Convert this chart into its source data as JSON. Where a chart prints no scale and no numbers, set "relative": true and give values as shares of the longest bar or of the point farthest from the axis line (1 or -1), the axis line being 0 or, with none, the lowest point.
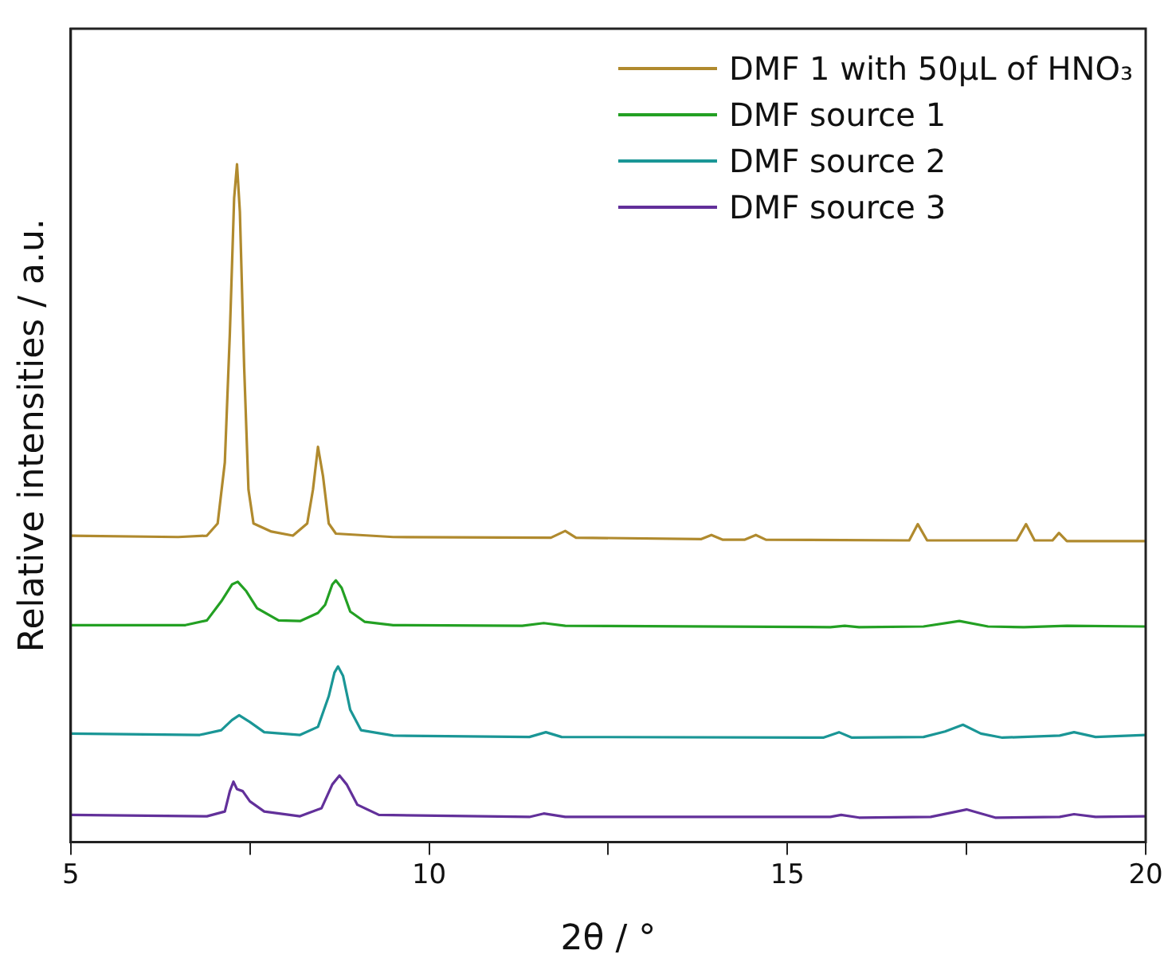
{
  "chart_data": {
    "type": "line",
    "xlabel": "2θ / °",
    "ylabel": "Relative intensities / a.u.",
    "relative": true,
    "legend": "top right",
    "grid": false,
    "marker": "none",
    "line_style": "solid",
    "xlim": [
      5,
      20
    ],
    "xticks": [
      5,
      {
        "value": 7.5,
        "label": null
      },
      10,
      {
        "value": 12.5,
        "label": null
      },
      15,
      {
        "value": 17.5,
        "label": null
      },
      20
    ],
    "series": [
      {
        "name": "DMF 1 with 50μL of HNO₃",
        "color": "#b08a2e",
        "x": [
          5,
          6.5,
          6.9,
          7.05,
          7.15,
          7.22,
          7.28,
          7.32,
          7.36,
          7.42,
          7.48,
          7.55,
          7.8,
          8.1,
          8.3,
          8.38,
          8.45,
          8.52,
          8.6,
          8.7,
          9.5,
          11.7,
          11.9,
          12.05,
          13.8,
          13.94,
          14.1,
          14.4,
          14.56,
          14.7,
          16.7,
          16.82,
          16.95,
          18.2,
          18.33,
          18.45,
          18.7,
          18.79,
          18.9,
          20
        ],
        "values": [
          0.452,
          0.45,
          0.452,
          0.47,
          0.56,
          0.75,
          0.95,
          1.0,
          0.93,
          0.7,
          0.52,
          0.47,
          0.458,
          0.452,
          0.47,
          0.52,
          0.583,
          0.54,
          0.47,
          0.455,
          0.45,
          0.449,
          0.459,
          0.449,
          0.447,
          0.453,
          0.446,
          0.446,
          0.453,
          0.446,
          0.445,
          0.469,
          0.445,
          0.445,
          0.469,
          0.445,
          0.445,
          0.456,
          0.444,
          0.444
        ]
      },
      {
        "name": "DMF source 1",
        "color": "#23a023",
        "x": [
          5,
          6.6,
          6.9,
          7.1,
          7.25,
          7.33,
          7.45,
          7.6,
          7.9,
          8.2,
          8.45,
          8.55,
          8.65,
          8.7,
          8.78,
          8.9,
          9.1,
          9.5,
          11.3,
          11.6,
          11.9,
          15.6,
          15.8,
          16.0,
          16.9,
          17.4,
          17.8,
          18.3,
          18.9,
          20
        ],
        "values": [
          0.32,
          0.32,
          0.327,
          0.355,
          0.38,
          0.384,
          0.37,
          0.345,
          0.327,
          0.326,
          0.338,
          0.35,
          0.38,
          0.386,
          0.375,
          0.34,
          0.325,
          0.32,
          0.319,
          0.323,
          0.319,
          0.317,
          0.319,
          0.317,
          0.318,
          0.326,
          0.318,
          0.317,
          0.319,
          0.318
        ]
      },
      {
        "name": "DMF source 2",
        "color": "#1a9696",
        "x": [
          5,
          6.8,
          7.1,
          7.25,
          7.35,
          7.5,
          7.7,
          8.2,
          8.45,
          8.6,
          8.68,
          8.73,
          8.8,
          8.9,
          9.05,
          9.5,
          11.4,
          11.63,
          11.85,
          15.5,
          15.72,
          15.9,
          16.9,
          17.2,
          17.45,
          17.7,
          18.0,
          18.8,
          19.0,
          19.3,
          20
        ],
        "values": [
          0.16,
          0.158,
          0.165,
          0.18,
          0.187,
          0.177,
          0.162,
          0.158,
          0.17,
          0.215,
          0.25,
          0.259,
          0.245,
          0.195,
          0.165,
          0.157,
          0.155,
          0.162,
          0.155,
          0.154,
          0.162,
          0.154,
          0.155,
          0.163,
          0.173,
          0.16,
          0.154,
          0.157,
          0.162,
          0.155,
          0.158
        ]
      },
      {
        "name": "DMF source 3",
        "color": "#62309a",
        "x": [
          5,
          6.9,
          7.15,
          7.22,
          7.27,
          7.32,
          7.4,
          7.5,
          7.7,
          8.2,
          8.5,
          8.65,
          8.75,
          8.85,
          9.0,
          9.3,
          11.4,
          11.6,
          11.9,
          15.6,
          15.75,
          16.0,
          17.0,
          17.5,
          17.9,
          18.8,
          19.0,
          19.3,
          20
        ],
        "values": [
          0.04,
          0.038,
          0.045,
          0.075,
          0.089,
          0.078,
          0.075,
          0.06,
          0.045,
          0.038,
          0.05,
          0.085,
          0.098,
          0.085,
          0.055,
          0.04,
          0.037,
          0.042,
          0.037,
          0.037,
          0.04,
          0.036,
          0.037,
          0.048,
          0.036,
          0.037,
          0.041,
          0.037,
          0.038
        ]
      }
    ]
  }
}
